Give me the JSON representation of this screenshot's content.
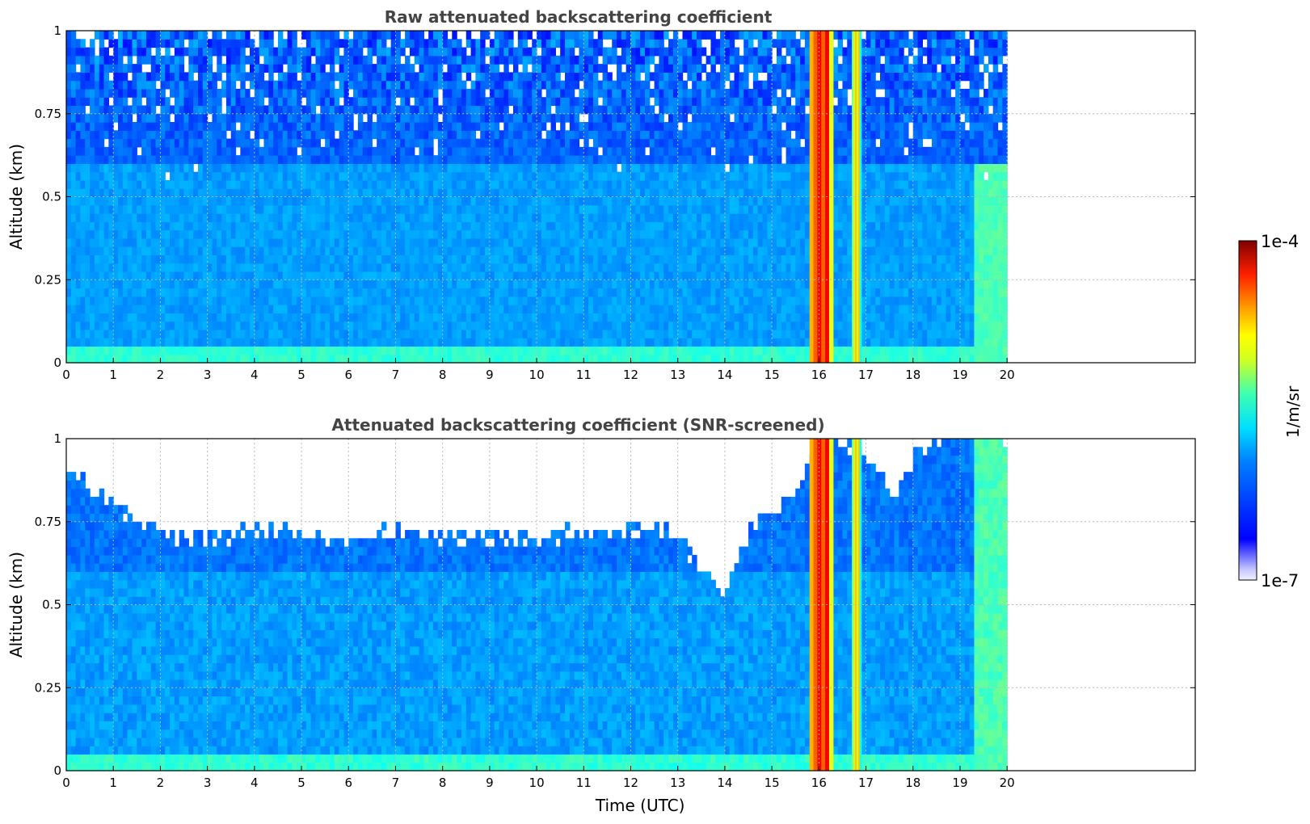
{
  "chart_data": [
    {
      "type": "heatmap",
      "title": "Raw attenuated backscattering coefficient",
      "xlabel": "",
      "ylabel": "Altitude (km)",
      "xlim": [
        0,
        24
      ],
      "ylim": [
        0,
        1
      ],
      "xticks": [
        "0",
        "1",
        "2",
        "3",
        "4",
        "5",
        "6",
        "7",
        "8",
        "9",
        "10",
        "11",
        "12",
        "13",
        "14",
        "15",
        "16",
        "17",
        "18",
        "19",
        "20"
      ],
      "yticks": [
        "0",
        "0.25",
        "0.5",
        "0.75",
        "1"
      ],
      "grid": true,
      "data_extent_hours": [
        0,
        20
      ],
      "variant": "raw",
      "fields": [
        {
          "name": "surface layer",
          "time": [
            0,
            20
          ],
          "altitude": [
            0,
            0.05
          ],
          "level": 0.42
        },
        {
          "name": "boundary layer",
          "time": [
            0,
            20
          ],
          "altitude": [
            0.05,
            0.6
          ],
          "level": 0.28
        },
        {
          "name": "upper noise",
          "time": [
            0,
            20
          ],
          "altitude": [
            0.6,
            1.0
          ],
          "level": 0.22
        },
        {
          "name": "late-day layer",
          "time": [
            19.3,
            20
          ],
          "altitude": [
            0,
            0.6
          ],
          "level": 0.45
        }
      ],
      "cloud_columns": [
        {
          "time_start": 15.8,
          "time_end": 16.3,
          "level": 0.82
        },
        {
          "time_start": 16.7,
          "time_end": 16.9,
          "level": 0.62
        }
      ]
    },
    {
      "type": "heatmap",
      "title": "Attenuated backscattering coefficient (SNR-screened)",
      "xlabel": "Time (UTC)",
      "ylabel": "Altitude (km)",
      "xlim": [
        0,
        24
      ],
      "ylim": [
        0,
        1
      ],
      "xticks": [
        "0",
        "1",
        "2",
        "3",
        "4",
        "5",
        "6",
        "7",
        "8",
        "9",
        "10",
        "11",
        "12",
        "13",
        "14",
        "15",
        "16",
        "17",
        "18",
        "19",
        "20"
      ],
      "yticks": [
        "0",
        "0.25",
        "0.5",
        "0.75",
        "1"
      ],
      "grid": true,
      "data_extent_hours": [
        0,
        20
      ],
      "variant": "screened",
      "screened_top_altitude_km": [
        [
          0,
          0.92
        ],
        [
          1,
          0.8
        ],
        [
          2,
          0.72
        ],
        [
          3,
          0.7
        ],
        [
          4,
          0.72
        ],
        [
          5,
          0.72
        ],
        [
          6,
          0.7
        ],
        [
          7,
          0.72
        ],
        [
          8,
          0.7
        ],
        [
          9,
          0.7
        ],
        [
          10,
          0.7
        ],
        [
          11,
          0.72
        ],
        [
          12,
          0.72
        ],
        [
          13,
          0.72
        ],
        [
          13.5,
          0.6
        ],
        [
          14,
          0.52
        ],
        [
          14.4,
          0.7
        ],
        [
          15,
          0.78
        ],
        [
          15.5,
          0.85
        ],
        [
          16,
          1.0
        ],
        [
          17,
          0.95
        ],
        [
          17.6,
          0.8
        ],
        [
          18,
          0.95
        ],
        [
          18.5,
          1.0
        ],
        [
          20,
          1.0
        ]
      ],
      "fields": [
        {
          "name": "surface layer",
          "time": [
            0,
            20
          ],
          "altitude": [
            0,
            0.05
          ],
          "level": 0.42
        },
        {
          "name": "boundary layer",
          "time": [
            0,
            20
          ],
          "altitude": [
            0.05,
            0.6
          ],
          "level": 0.28
        },
        {
          "name": "upper layer",
          "time": [
            0,
            20
          ],
          "altitude": [
            0.6,
            1.0
          ],
          "level": 0.24
        },
        {
          "name": "late-day layer",
          "time": [
            19.3,
            20
          ],
          "altitude": [
            0,
            1.0
          ],
          "level": 0.45
        }
      ],
      "cloud_columns": [
        {
          "time_start": 15.8,
          "time_end": 16.3,
          "level": 0.82
        },
        {
          "time_start": 16.7,
          "time_end": 16.9,
          "level": 0.62
        }
      ]
    }
  ],
  "colorbar": {
    "label": "1/m/sr",
    "max_label": "1e-4",
    "min_label": "1e-7",
    "colormap": "jet",
    "scale": "log"
  }
}
